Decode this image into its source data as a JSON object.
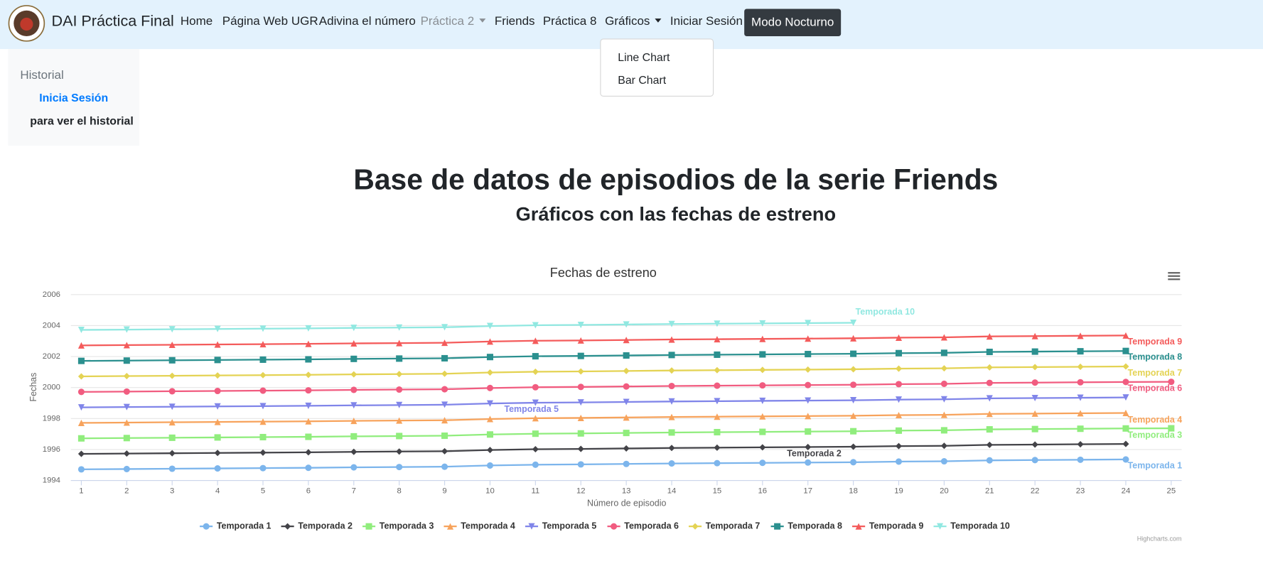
{
  "navbar": {
    "brand": "DAI Práctica Final",
    "links": [
      "Home",
      "Página Web UGR",
      "Adivina el número",
      "Práctica 2",
      "Friends",
      "Práctica 8",
      "Gráficos",
      "Iniciar Sesión"
    ],
    "button": "Modo Nocturno",
    "dropdown": [
      "Line Chart",
      "Bar Chart"
    ]
  },
  "sidebar": {
    "title": "Historial",
    "link": "Inicia Sesión",
    "text": "para ver el historial"
  },
  "heading": "Base de datos de episodios de la serie Friends",
  "subheading": "Gráficos con las fechas de estreno",
  "chart_data": {
    "type": "line",
    "title": "Fechas de estreno",
    "x_label": "Número de episodio",
    "y_label": "Fechas",
    "credits": "Highcharts.com",
    "x": [
      1,
      2,
      3,
      4,
      5,
      6,
      7,
      8,
      9,
      10,
      11,
      12,
      13,
      14,
      15,
      16,
      17,
      18,
      19,
      20,
      21,
      22,
      23,
      24,
      25
    ],
    "xlim": [
      0.77,
      25.23
    ],
    "xticks": [
      1,
      2,
      3,
      4,
      5,
      6,
      7,
      8,
      9,
      10,
      11,
      12,
      13,
      14,
      15,
      16,
      17,
      18,
      19,
      20,
      21,
      22,
      23,
      24,
      25
    ],
    "ylim": [
      1994,
      2006
    ],
    "yticks": [
      1994,
      1996,
      1998,
      2000,
      2002,
      2004,
      2006
    ],
    "grid": true,
    "legend": "bottom",
    "series": [
      {
        "name": "Temporada 1",
        "color": "#7cb5ec",
        "marker": "circle",
        "values": [
          1994.72,
          1994.74,
          1994.76,
          1994.78,
          1994.8,
          1994.82,
          1994.85,
          1994.87,
          1994.89,
          1994.97,
          1995.02,
          1995.04,
          1995.07,
          1995.1,
          1995.12,
          1995.14,
          1995.16,
          1995.18,
          1995.22,
          1995.24,
          1995.3,
          1995.32,
          1995.34,
          1995.36,
          null
        ]
      },
      {
        "name": "Temporada 2",
        "color": "#434348",
        "marker": "diamond",
        "values": [
          1995.72,
          1995.74,
          1995.76,
          1995.78,
          1995.8,
          1995.82,
          1995.85,
          1995.87,
          1995.89,
          1995.97,
          1996.02,
          1996.04,
          1996.07,
          1996.1,
          1996.12,
          1996.14,
          1996.16,
          1996.18,
          1996.22,
          1996.24,
          1996.3,
          1996.32,
          1996.34,
          1996.36,
          null
        ]
      },
      {
        "name": "Temporada 3",
        "color": "#90ed7d",
        "marker": "square",
        "values": [
          1996.72,
          1996.74,
          1996.76,
          1996.78,
          1996.8,
          1996.82,
          1996.85,
          1996.87,
          1996.89,
          1996.97,
          1997.02,
          1997.04,
          1997.07,
          1997.1,
          1997.12,
          1997.14,
          1997.16,
          1997.18,
          1997.22,
          1997.24,
          1997.3,
          1997.32,
          1997.34,
          1997.36,
          1997.37
        ]
      },
      {
        "name": "Temporada 4",
        "color": "#f7a35c",
        "marker": "triangle",
        "values": [
          1997.72,
          1997.74,
          1997.76,
          1997.78,
          1997.8,
          1997.82,
          1997.85,
          1997.87,
          1997.89,
          1997.97,
          1998.02,
          1998.04,
          1998.07,
          1998.1,
          1998.12,
          1998.14,
          1998.16,
          1998.18,
          1998.22,
          1998.24,
          1998.3,
          1998.32,
          1998.34,
          1998.36,
          null
        ]
      },
      {
        "name": "Temporada 5",
        "color": "#8085e9",
        "marker": "triangle-down",
        "values": [
          1998.72,
          1998.74,
          1998.76,
          1998.78,
          1998.8,
          1998.82,
          1998.85,
          1998.87,
          1998.89,
          1998.97,
          1999.02,
          1999.04,
          1999.07,
          1999.1,
          1999.12,
          1999.14,
          1999.16,
          1999.18,
          1999.22,
          1999.24,
          1999.3,
          1999.32,
          1999.34,
          1999.36,
          null
        ]
      },
      {
        "name": "Temporada 6",
        "color": "#f15c80",
        "marker": "circle",
        "values": [
          1999.72,
          1999.74,
          1999.76,
          1999.78,
          1999.8,
          1999.82,
          1999.85,
          1999.87,
          1999.89,
          1999.97,
          2000.02,
          2000.04,
          2000.07,
          2000.1,
          2000.12,
          2000.14,
          2000.16,
          2000.18,
          2000.22,
          2000.24,
          2000.3,
          2000.32,
          2000.34,
          2000.36,
          2000.37
        ]
      },
      {
        "name": "Temporada 7",
        "color": "#e4d354",
        "marker": "diamond",
        "values": [
          2000.72,
          2000.74,
          2000.76,
          2000.78,
          2000.8,
          2000.82,
          2000.85,
          2000.87,
          2000.89,
          2000.97,
          2001.02,
          2001.04,
          2001.07,
          2001.1,
          2001.12,
          2001.14,
          2001.16,
          2001.18,
          2001.22,
          2001.24,
          2001.3,
          2001.32,
          2001.34,
          2001.36,
          null
        ]
      },
      {
        "name": "Temporada 8",
        "color": "#2b908f",
        "marker": "square",
        "values": [
          2001.72,
          2001.74,
          2001.76,
          2001.78,
          2001.8,
          2001.82,
          2001.85,
          2001.87,
          2001.89,
          2001.97,
          2002.02,
          2002.04,
          2002.07,
          2002.1,
          2002.12,
          2002.14,
          2002.16,
          2002.18,
          2002.22,
          2002.24,
          2002.3,
          2002.32,
          2002.34,
          2002.36,
          null
        ]
      },
      {
        "name": "Temporada 9",
        "color": "#f45b5b",
        "marker": "triangle",
        "values": [
          2002.72,
          2002.74,
          2002.76,
          2002.78,
          2002.8,
          2002.82,
          2002.85,
          2002.87,
          2002.89,
          2002.97,
          2003.02,
          2003.04,
          2003.07,
          2003.1,
          2003.12,
          2003.14,
          2003.16,
          2003.18,
          2003.22,
          2003.24,
          2003.3,
          2003.32,
          2003.34,
          2003.36,
          null
        ]
      },
      {
        "name": "Temporada 10",
        "color": "#91e8e1",
        "marker": "triangle-down",
        "values": [
          2003.72,
          2003.74,
          2003.76,
          2003.78,
          2003.8,
          2003.82,
          2003.85,
          2003.87,
          2003.89,
          2003.97,
          2004.02,
          2004.04,
          2004.07,
          2004.1,
          2004.12,
          2004.14,
          2004.16,
          2004.18,
          null,
          null,
          null,
          null,
          null,
          null,
          null
        ]
      }
    ]
  }
}
